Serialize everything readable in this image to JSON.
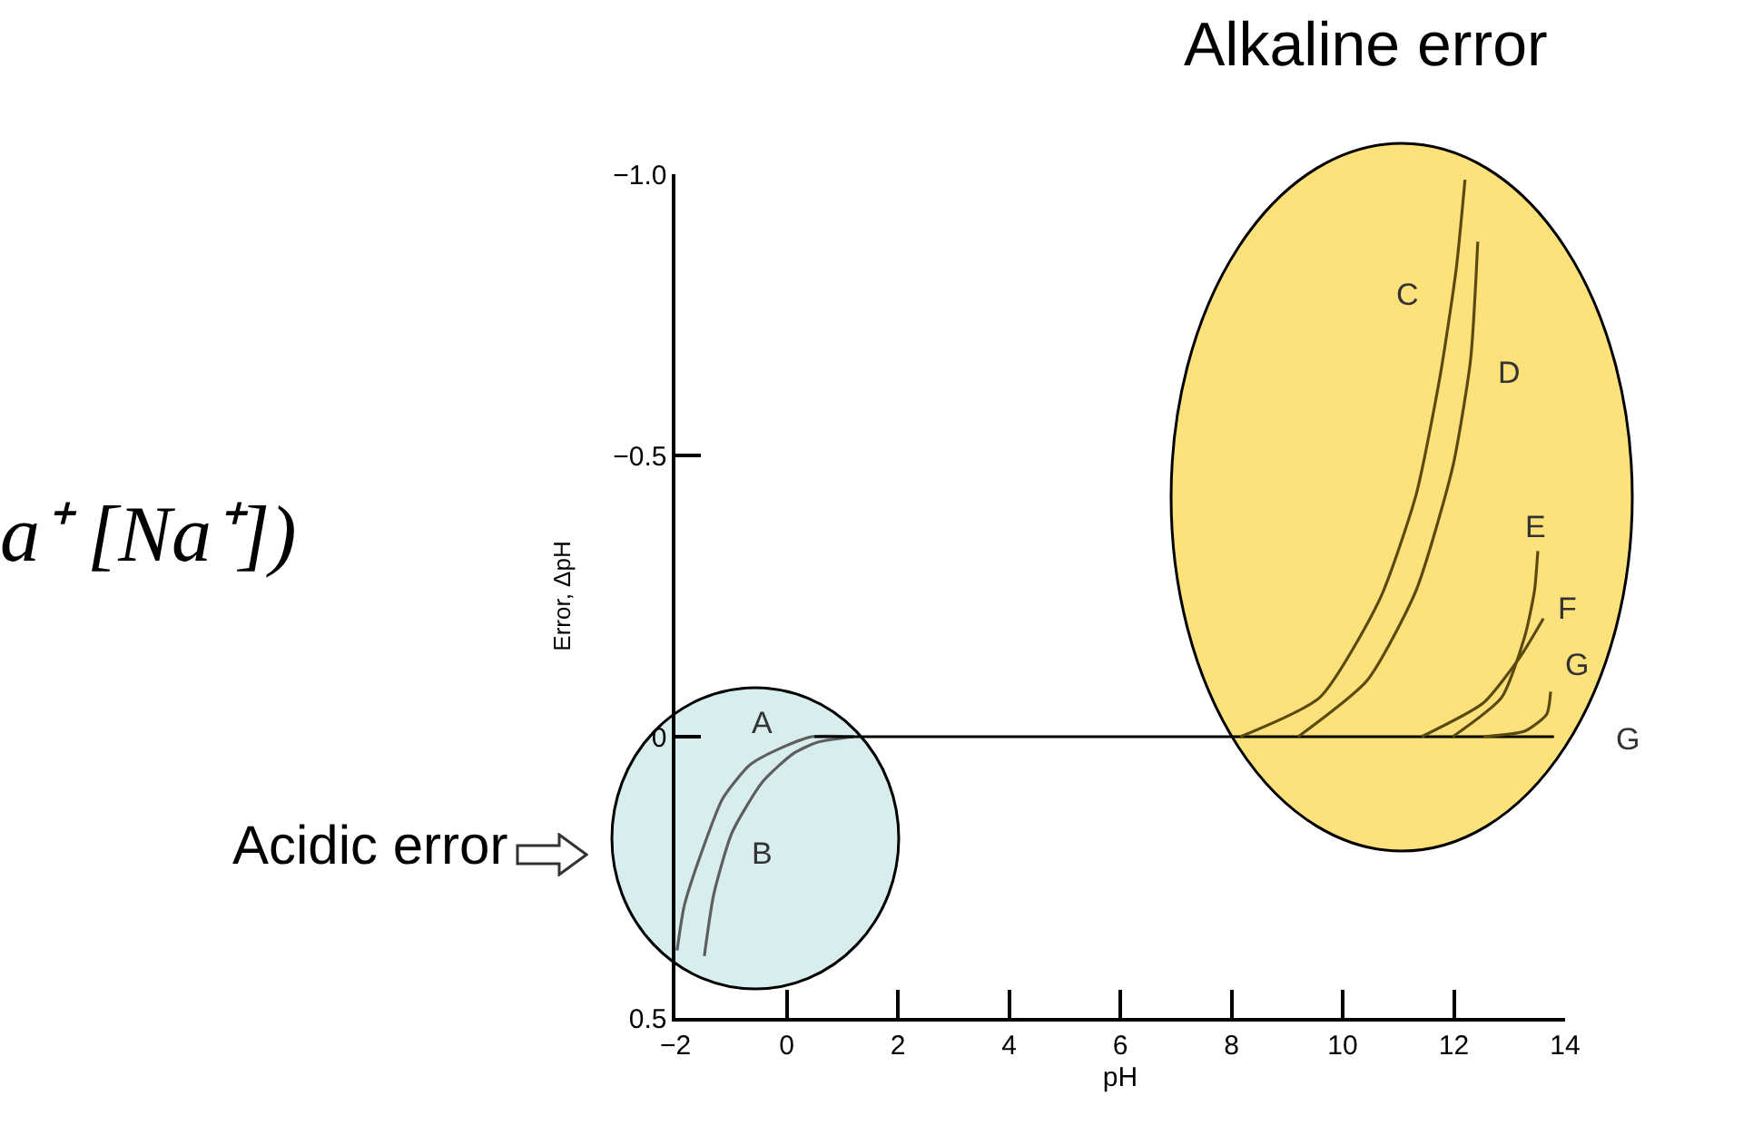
{
  "chart_data": {
    "type": "line",
    "xlabel": "pH",
    "ylabel": "Error, ΔpH",
    "xlim": [
      -2,
      14
    ],
    "xticks": [
      {
        "value": -2,
        "label": "−2"
      },
      0,
      2,
      4,
      6,
      8,
      10,
      12,
      14
    ],
    "ylim": [
      0.5,
      -1.0
    ],
    "yticks": [
      {
        "value": -1.0,
        "label": "−1.0"
      },
      {
        "value": -0.5,
        "label": "−0.5"
      },
      0,
      0.5
    ],
    "grid": false,
    "marker": "none",
    "line_style": "solid",
    "series": [
      {
        "color": "#5e5e5e",
        "x": [
          -1.97,
          -1.84,
          -1.51,
          -1.15,
          -0.66,
          -0.1,
          0.45,
          1.2
        ],
        "values": [
          0.38,
          0.3,
          0.2,
          0.11,
          0.05,
          0.02,
          0,
          0
        ]
      },
      {
        "color": "#5e5e5e",
        "x": [
          -1.48,
          -1.31,
          -0.98,
          -0.43,
          0.12,
          0.55,
          1.2
        ],
        "values": [
          0.39,
          0.28,
          0.17,
          0.08,
          0.03,
          0.01,
          0
        ]
      },
      {
        "color": "#000000",
        "x": [
          0.5,
          13.8
        ],
        "values": [
          0,
          0
        ]
      },
      {
        "color": "#5a4a12",
        "x": [
          8.16,
          9.59,
          10.67,
          11.32,
          11.75,
          12.04,
          12.2
        ],
        "values": [
          0,
          -0.07,
          -0.245,
          -0.43,
          -0.64,
          -0.83,
          -0.99
        ]
      },
      {
        "color": "#5a4a12",
        "x": [
          9.2,
          10.44,
          11.32,
          11.98,
          12.3,
          12.43
        ],
        "values": [
          0,
          -0.1,
          -0.26,
          -0.48,
          -0.67,
          -0.88
        ]
      },
      {
        "color": "#5a4a12",
        "x": [
          11.98,
          12.86,
          13.28,
          13.45,
          13.51
        ],
        "values": [
          0,
          -0.07,
          -0.18,
          -0.26,
          -0.33
        ]
      },
      {
        "color": "#5a4a12",
        "x": [
          11.42,
          12.53,
          13.18,
          13.61
        ],
        "values": [
          0,
          -0.06,
          -0.14,
          -0.21
        ]
      },
      {
        "color": "#5a4a12",
        "x": [
          12.53,
          13.28,
          13.67,
          13.74
        ],
        "values": [
          0,
          -0.01,
          -0.04,
          -0.08
        ]
      }
    ],
    "annotations": [
      "a⁺ [Na⁺])",
      "Alkaline error",
      "Acidic error",
      "A",
      "B",
      "C",
      "D",
      "E",
      "F",
      "G",
      "G"
    ]
  }
}
